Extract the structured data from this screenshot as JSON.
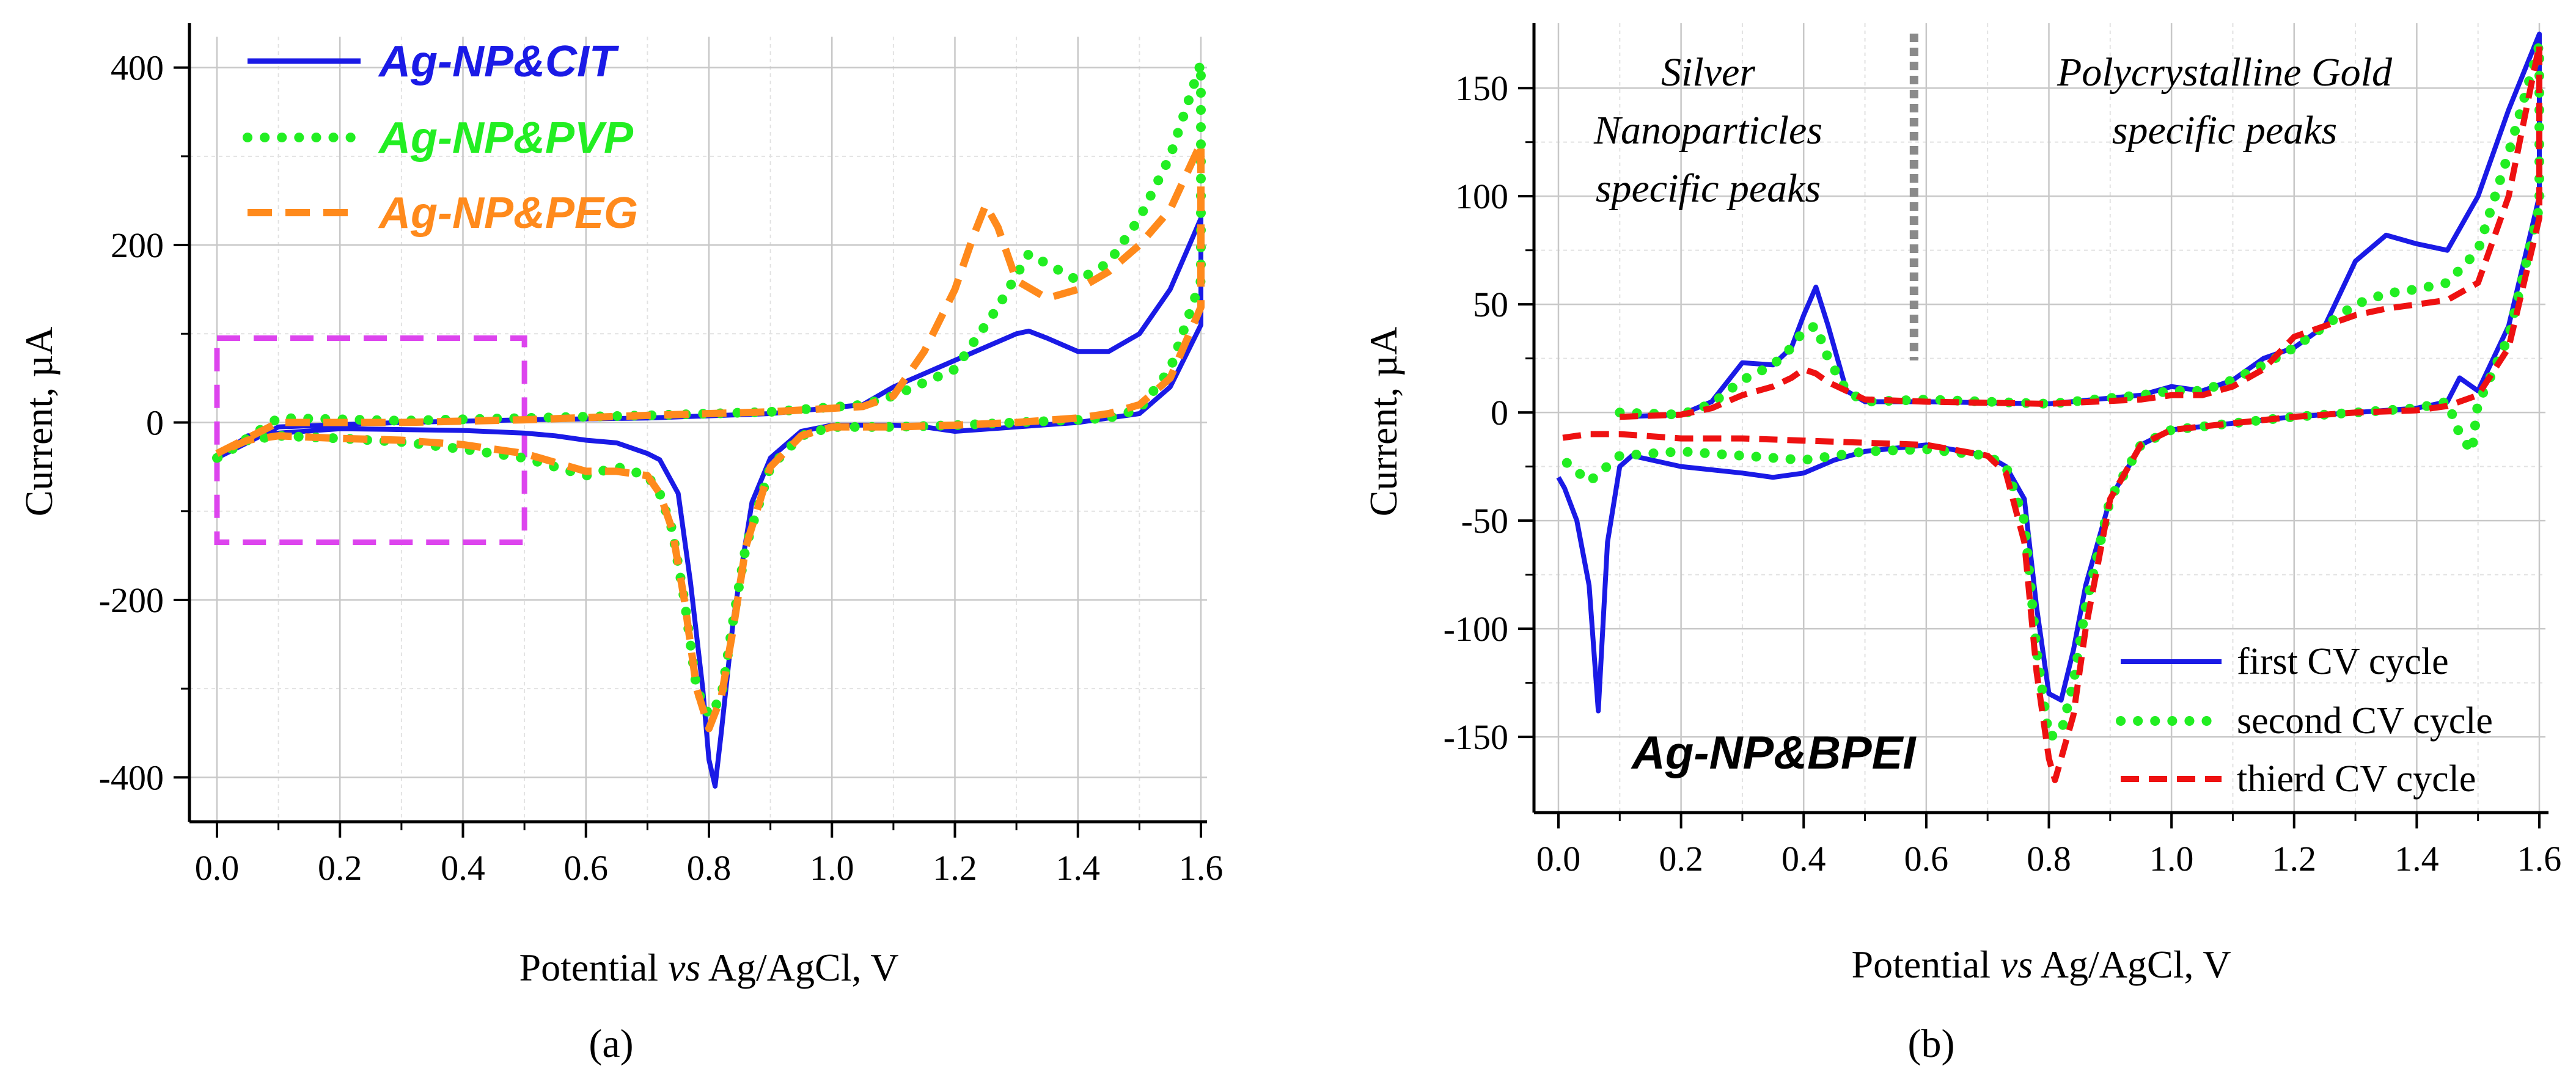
{
  "figure": {
    "panel_a_label": "(a)",
    "panel_b_label": "(b)",
    "colors": {
      "blue": "#1a1ae6",
      "green": "#22ee22",
      "orange": "#ff8a1c",
      "red": "#ee1111",
      "magenta": "#dd44ee",
      "gray": "#8a8a8a"
    }
  },
  "chart_data": [
    {
      "id": "a",
      "type": "line",
      "title": "",
      "xlabel": "Potential vs Ag/AgCl, V",
      "xlabel_parts": [
        "Potential ",
        "vs",
        " Ag/AgCl, V"
      ],
      "ylabel": "Current, µA",
      "xlim": [
        0,
        1.6
      ],
      "ylim": [
        -450,
        450
      ],
      "xticks": [
        0.0,
        0.2,
        0.4,
        0.6,
        0.8,
        1.0,
        1.2,
        1.4,
        1.6
      ],
      "xtick_labels": [
        "0.0",
        "0.2",
        "0.4",
        "0.6",
        "0.8",
        "1.0",
        "1.2",
        "1.4",
        "1.6"
      ],
      "yticks": [
        -400,
        -200,
        0,
        200,
        400
      ],
      "ytick_labels": [
        "-400",
        "-200",
        "0",
        "200",
        "400"
      ],
      "grid": true,
      "legend_position": "top-left",
      "highlight_box": {
        "x": [
          0.0,
          0.5
        ],
        "y": [
          -135,
          95
        ]
      },
      "series": [
        {
          "name": "Ag-NP&CIT",
          "style": "solid",
          "color": "#1a1ae6",
          "x": [
            0.0,
            0.1,
            0.3,
            0.5,
            0.7,
            0.9,
            1.05,
            1.1,
            1.2,
            1.3,
            1.32,
            1.35,
            1.4,
            1.45,
            1.5,
            1.55,
            1.6,
            1.6,
            1.55,
            1.5,
            1.45,
            1.4,
            1.3,
            1.2,
            1.15,
            1.1,
            1.0,
            0.95,
            0.9,
            0.87,
            0.84,
            0.82,
            0.81,
            0.8,
            0.79,
            0.77,
            0.75,
            0.72,
            0.7,
            0.65,
            0.6,
            0.55,
            0.5,
            0.4,
            0.3,
            0.2,
            0.1,
            0.05,
            0.0
          ],
          "y": [
            -40,
            -5,
            0,
            3,
            5,
            10,
            20,
            40,
            70,
            100,
            103,
            95,
            80,
            80,
            100,
            150,
            230,
            110,
            40,
            10,
            5,
            0,
            -5,
            -10,
            -5,
            -3,
            -3,
            -10,
            -40,
            -90,
            -220,
            -350,
            -410,
            -380,
            -300,
            -180,
            -80,
            -42,
            -35,
            -23,
            -20,
            -15,
            -12,
            -9,
            -8,
            -7,
            -12,
            -15,
            -40
          ]
        },
        {
          "name": "Ag-NP&PVP",
          "style": "dotted",
          "color": "#22ee22",
          "x": [
            0.0,
            0.1,
            0.3,
            0.5,
            0.7,
            0.9,
            1.05,
            1.1,
            1.2,
            1.27,
            1.32,
            1.36,
            1.4,
            1.45,
            1.5,
            1.55,
            1.6,
            1.6,
            1.55,
            1.5,
            1.45,
            1.4,
            1.3,
            1.2,
            1.1,
            1.0,
            0.95,
            0.9,
            0.86,
            0.84,
            0.82,
            0.8,
            0.78,
            0.76,
            0.74,
            0.72,
            0.7,
            0.65,
            0.6,
            0.55,
            0.5,
            0.4,
            0.3,
            0.2,
            0.1,
            0.05,
            0.0
          ],
          "y": [
            -40,
            5,
            2,
            5,
            8,
            12,
            20,
            30,
            60,
            130,
            190,
            175,
            160,
            180,
            230,
            300,
            405,
            160,
            60,
            15,
            5,
            3,
            0,
            -3,
            -5,
            -5,
            -15,
            -50,
            -140,
            -220,
            -310,
            -330,
            -300,
            -200,
            -120,
            -80,
            -60,
            -50,
            -60,
            -50,
            -40,
            -30,
            -22,
            -18,
            -15,
            -20,
            -40
          ]
        },
        {
          "name": "Ag-NP&PEG",
          "style": "dashed",
          "color": "#ff8a1c",
          "x": [
            0.0,
            0.1,
            0.3,
            0.5,
            0.7,
            0.9,
            1.05,
            1.1,
            1.15,
            1.2,
            1.23,
            1.25,
            1.27,
            1.3,
            1.35,
            1.4,
            1.45,
            1.5,
            1.55,
            1.6,
            1.6,
            1.55,
            1.5,
            1.45,
            1.4,
            1.3,
            1.2,
            1.1,
            1.0,
            0.95,
            0.9,
            0.86,
            0.84,
            0.82,
            0.8,
            0.78,
            0.76,
            0.74,
            0.72,
            0.7,
            0.65,
            0.6,
            0.55,
            0.5,
            0.4,
            0.3,
            0.2,
            0.1,
            0.05,
            0.0
          ],
          "y": [
            -35,
            0,
            0,
            3,
            8,
            12,
            18,
            30,
            80,
            150,
            210,
            245,
            220,
            160,
            140,
            150,
            170,
            200,
            240,
            315,
            130,
            50,
            20,
            10,
            5,
            0,
            -3,
            -5,
            -5,
            -15,
            -50,
            -140,
            -230,
            -310,
            -345,
            -300,
            -200,
            -120,
            -80,
            -60,
            -55,
            -55,
            -45,
            -35,
            -25,
            -20,
            -18,
            -15,
            -20,
            -35
          ]
        }
      ]
    },
    {
      "id": "b",
      "type": "line",
      "title": "",
      "xlabel": "Potential vs Ag/AgCl, V",
      "xlabel_parts": [
        "Potential ",
        "vs",
        " Ag/AgCl, V"
      ],
      "ylabel": "Current, µA",
      "xlim": [
        0,
        1.6
      ],
      "ylim": [
        -185,
        180
      ],
      "xticks": [
        0.0,
        0.2,
        0.4,
        0.6,
        0.8,
        1.0,
        1.2,
        1.4,
        1.6
      ],
      "xtick_labels": [
        "0.0",
        "0.2",
        "0.4",
        "0.6",
        "0.8",
        "1.0",
        "1.2",
        "1.4",
        "1.6"
      ],
      "yticks": [
        -150,
        -100,
        -50,
        0,
        50,
        100,
        150
      ],
      "ytick_labels": [
        "-150",
        "-100",
        "-50",
        "0",
        "50",
        "100",
        "150"
      ],
      "grid": true,
      "legend_position": "bottom-right",
      "divider_x": 0.58,
      "annotations": {
        "silver": [
          "Silver",
          "Nanoparticles",
          "specific peaks"
        ],
        "gold": [
          "Polycrystalline Gold",
          "specific peaks"
        ],
        "sample": "Ag-NP&BPEI"
      },
      "series": [
        {
          "name": "first CV cycle",
          "style": "solid",
          "color": "#1a1ae6",
          "x": [
            0.1,
            0.2,
            0.25,
            0.3,
            0.35,
            0.38,
            0.4,
            0.42,
            0.44,
            0.47,
            0.5,
            0.6,
            0.8,
            0.95,
            1.0,
            1.05,
            1.1,
            1.15,
            1.2,
            1.25,
            1.3,
            1.35,
            1.4,
            1.45,
            1.5,
            1.55,
            1.6,
            1.6,
            1.55,
            1.5,
            1.48,
            1.47,
            1.45,
            1.4,
            1.3,
            1.2,
            1.1,
            1.0,
            0.95,
            0.9,
            0.86,
            0.84,
            0.82,
            0.8,
            0.78,
            0.76,
            0.73,
            0.7,
            0.6,
            0.5,
            0.45,
            0.4,
            0.35,
            0.3,
            0.2,
            0.12,
            0.1,
            0.08,
            0.065,
            0.05,
            0.03,
            0.01,
            0.0
          ],
          "y": [
            -2,
            -1,
            5,
            23,
            22,
            30,
            45,
            58,
            40,
            10,
            5,
            5,
            4,
            8,
            12,
            10,
            15,
            25,
            30,
            40,
            70,
            82,
            78,
            75,
            100,
            140,
            175,
            100,
            40,
            10,
            14,
            16,
            5,
            2,
            0,
            -2,
            -5,
            -8,
            -15,
            -40,
            -80,
            -110,
            -133,
            -130,
            -90,
            -40,
            -25,
            -20,
            -15,
            -18,
            -22,
            -28,
            -30,
            -28,
            -25,
            -20,
            -25,
            -60,
            -138,
            -80,
            -50,
            -35,
            -30
          ]
        },
        {
          "name": "second CV cycle",
          "style": "dotted",
          "color": "#22ee22",
          "x": [
            0.1,
            0.2,
            0.25,
            0.3,
            0.35,
            0.38,
            0.4,
            0.42,
            0.44,
            0.47,
            0.5,
            0.6,
            0.8,
            0.95,
            1.0,
            1.05,
            1.1,
            1.15,
            1.2,
            1.25,
            1.3,
            1.35,
            1.4,
            1.45,
            1.5,
            1.55,
            1.6,
            1.6,
            1.55,
            1.51,
            1.5,
            1.49,
            1.47,
            1.45,
            1.4,
            1.3,
            1.2,
            1.1,
            1.0,
            0.95,
            0.9,
            0.86,
            0.84,
            0.82,
            0.8,
            0.78,
            0.76,
            0.73,
            0.7,
            0.6,
            0.5,
            0.4,
            0.3,
            0.2,
            0.1,
            0.05,
            0.0
          ],
          "y": [
            0,
            -1,
            4,
            15,
            22,
            30,
            38,
            40,
            25,
            10,
            5,
            6,
            4,
            8,
            10,
            10,
            15,
            22,
            30,
            40,
            50,
            55,
            57,
            60,
            75,
            120,
            170,
            95,
            35,
            10,
            5,
            -18,
            -10,
            5,
            2,
            0,
            -2,
            -5,
            -8,
            -15,
            -40,
            -90,
            -125,
            -148,
            -150,
            -110,
            -50,
            -25,
            -20,
            -17,
            -18,
            -22,
            -20,
            -18,
            -20,
            -32,
            -20
          ]
        },
        {
          "name": "thierd CV cycle",
          "style": "dashed",
          "color": "#ee1111",
          "x": [
            0.1,
            0.2,
            0.25,
            0.3,
            0.35,
            0.38,
            0.4,
            0.42,
            0.44,
            0.47,
            0.5,
            0.6,
            0.8,
            0.95,
            1.0,
            1.05,
            1.1,
            1.15,
            1.2,
            1.25,
            1.3,
            1.35,
            1.4,
            1.45,
            1.5,
            1.55,
            1.6,
            1.6,
            1.55,
            1.5,
            1.45,
            1.4,
            1.3,
            1.2,
            1.1,
            1.0,
            0.95,
            0.9,
            0.86,
            0.84,
            0.82,
            0.81,
            0.8,
            0.78,
            0.76,
            0.73,
            0.7,
            0.6,
            0.5,
            0.4,
            0.3,
            0.2,
            0.1,
            0.05,
            0.0
          ],
          "y": [
            -2,
            -1,
            2,
            8,
            12,
            16,
            20,
            18,
            14,
            10,
            6,
            5,
            4,
            6,
            8,
            8,
            12,
            20,
            35,
            40,
            45,
            48,
            50,
            52,
            60,
            100,
            170,
            90,
            30,
            8,
            3,
            1,
            0,
            -2,
            -5,
            -8,
            -15,
            -40,
            -100,
            -140,
            -160,
            -170,
            -160,
            -120,
            -60,
            -28,
            -20,
            -15,
            -14,
            -13,
            -12,
            -12,
            -10,
            -10,
            -12
          ]
        }
      ]
    }
  ]
}
